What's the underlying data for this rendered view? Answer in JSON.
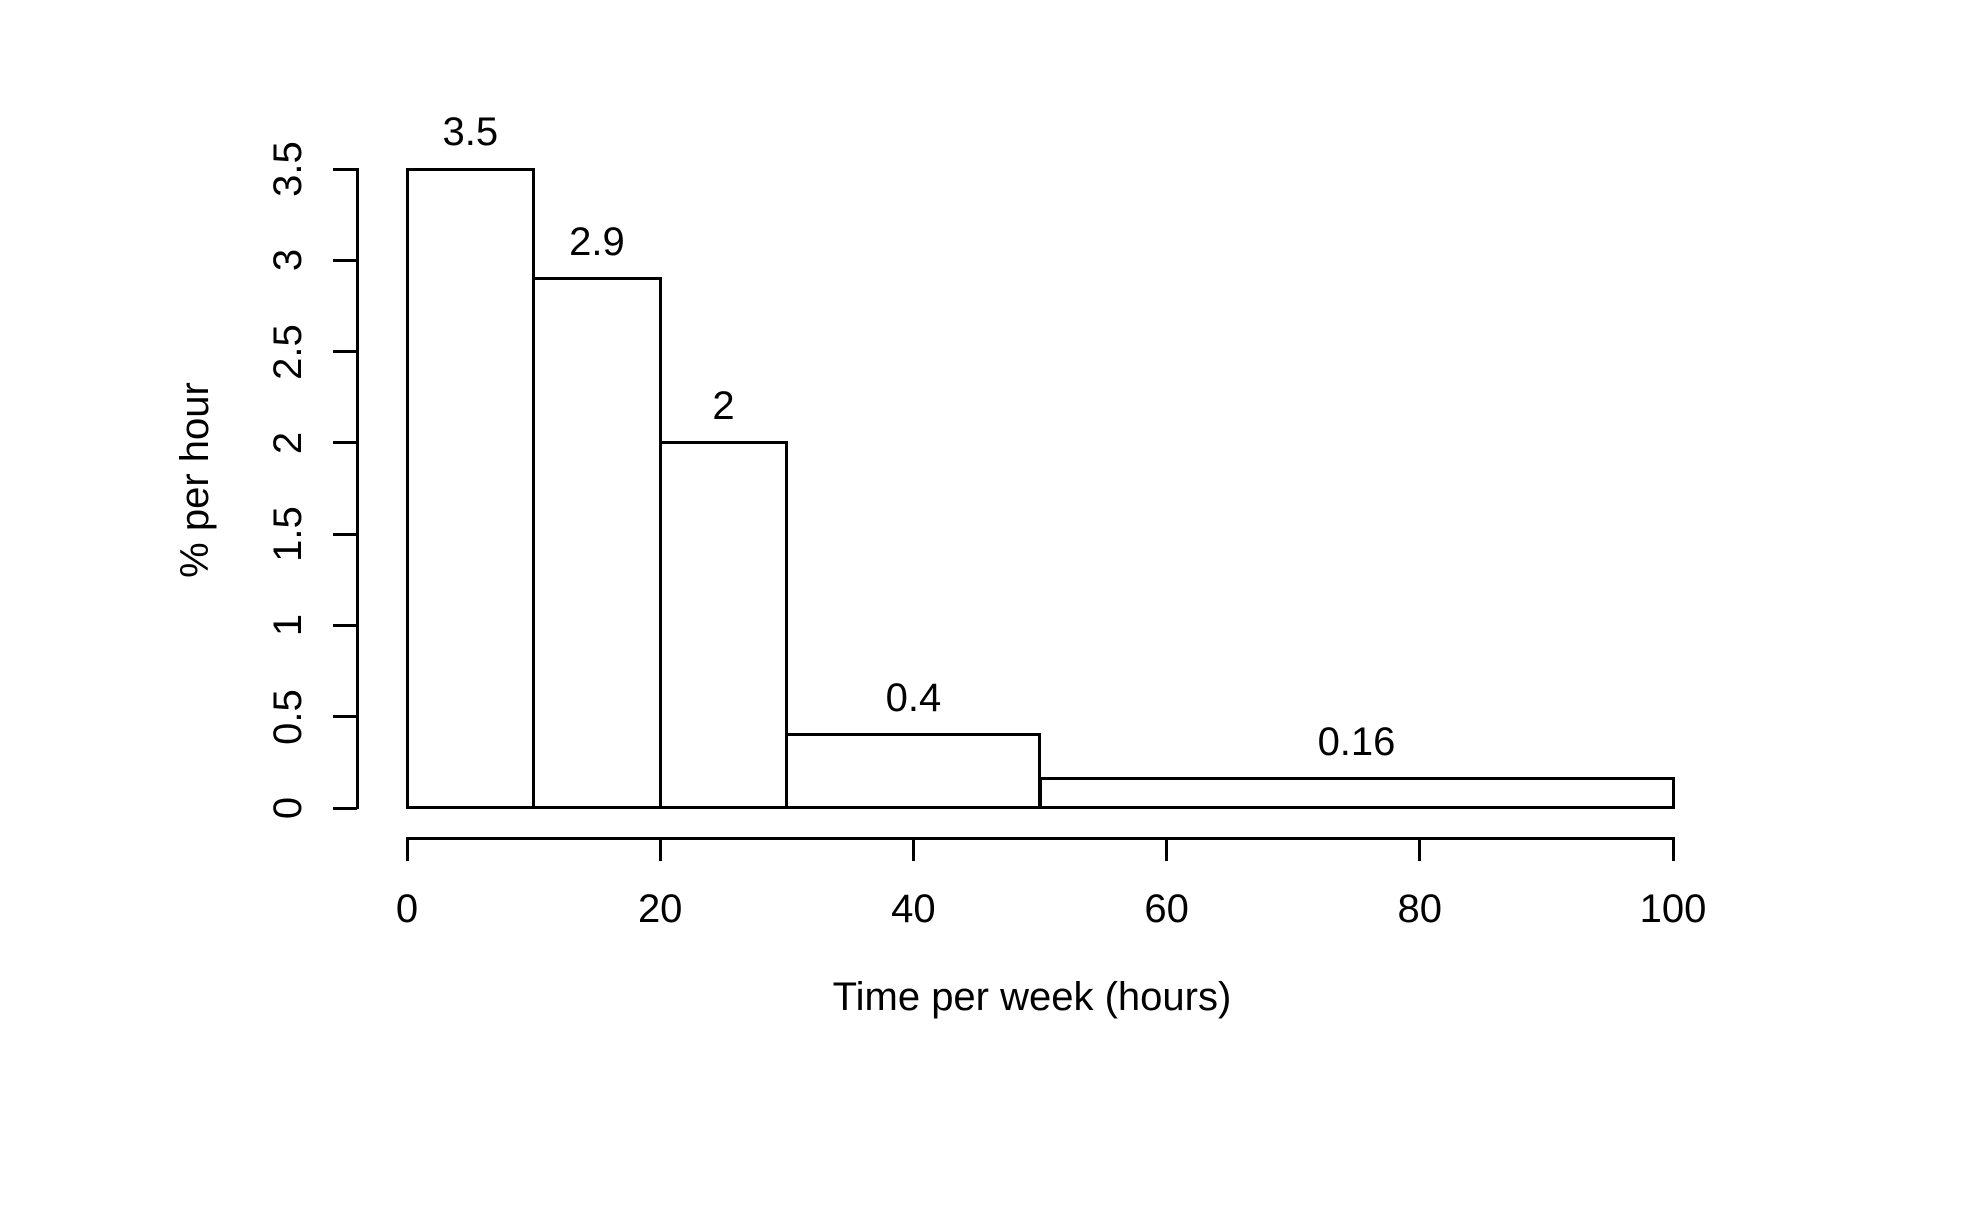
{
  "chart_data": {
    "type": "bar",
    "subtype": "histogram",
    "title": "",
    "xlabel": "Time per week (hours)",
    "ylabel": "% per hour",
    "bins": [
      [
        0,
        10
      ],
      [
        10,
        20
      ],
      [
        20,
        30
      ],
      [
        30,
        50
      ],
      [
        50,
        100
      ]
    ],
    "values": [
      3.5,
      2.9,
      2,
      0.4,
      0.16
    ],
    "bar_value_labels": [
      "3.5",
      "2.9",
      "2",
      "0.4",
      "0.16"
    ],
    "x_ticks": [
      0,
      20,
      40,
      60,
      80,
      100
    ],
    "x_tick_labels": [
      "0",
      "20",
      "40",
      "60",
      "80",
      "100"
    ],
    "y_ticks": [
      0,
      0.5,
      1,
      1.5,
      2,
      2.5,
      3,
      3.5
    ],
    "y_tick_labels": [
      "0",
      "0.5",
      "1",
      "1.5",
      "2",
      "2.5",
      "3",
      "3.5"
    ],
    "xlim": [
      0,
      100
    ],
    "ylim": [
      0,
      3.5
    ],
    "grid": false,
    "legend": false,
    "bar_fill_color": "#ffffff",
    "bar_border_color": "#000000",
    "axis_color": "#000000",
    "background_color": "#ffffff"
  }
}
